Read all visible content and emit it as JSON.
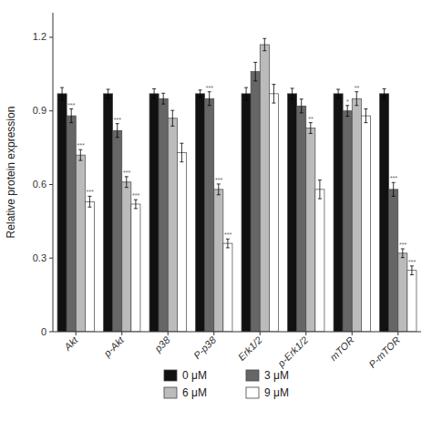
{
  "chart_data": {
    "type": "bar",
    "ylabel": "Relative protein expression",
    "categories": [
      "Akt",
      "p-Akt",
      "p38",
      "P-p38",
      "Erk1/2",
      "p-Erk1/2",
      "mTOR",
      "P-mTOR"
    ],
    "series": [
      {
        "name": "0 μM",
        "color": "#111111",
        "values": [
          0.97,
          0.97,
          0.97,
          0.97,
          0.97,
          0.97,
          0.97,
          0.97
        ],
        "errors": [
          0.025,
          0.018,
          0.02,
          0.015,
          0.025,
          0.022,
          0.018,
          0.02
        ]
      },
      {
        "name": "3 μM",
        "color": "#666666",
        "values": [
          0.88,
          0.82,
          0.95,
          0.95,
          1.06,
          0.92,
          0.9,
          0.58
        ],
        "errors": [
          0.028,
          0.028,
          0.022,
          0.028,
          0.038,
          0.028,
          0.022,
          0.028
        ],
        "annotations": [
          "***",
          "***",
          null,
          "***",
          null,
          null,
          "*",
          "***"
        ]
      },
      {
        "name": "6 μM",
        "color": "#bbbbbb",
        "values": [
          0.72,
          0.61,
          0.87,
          0.58,
          1.17,
          0.83,
          0.95,
          0.32
        ],
        "errors": [
          0.022,
          0.022,
          0.032,
          0.022,
          0.025,
          0.022,
          0.028,
          0.018
        ],
        "annotations": [
          "***",
          "***",
          null,
          "***",
          null,
          "**",
          "**",
          "***"
        ]
      },
      {
        "name": "9 μM",
        "color": "#ffffff",
        "values": [
          0.53,
          0.52,
          0.73,
          0.36,
          0.97,
          0.58,
          0.88,
          0.25
        ],
        "errors": [
          0.022,
          0.018,
          0.038,
          0.018,
          0.038,
          0.038,
          0.028,
          0.018
        ],
        "annotations": [
          "***",
          "***",
          null,
          "***",
          null,
          null,
          null,
          "***"
        ]
      }
    ],
    "ylim": [
      0,
      1.3
    ],
    "yticks": [
      0,
      0.3,
      0.6,
      0.9,
      1.2
    ],
    "grid": false,
    "legend": "bottom"
  }
}
